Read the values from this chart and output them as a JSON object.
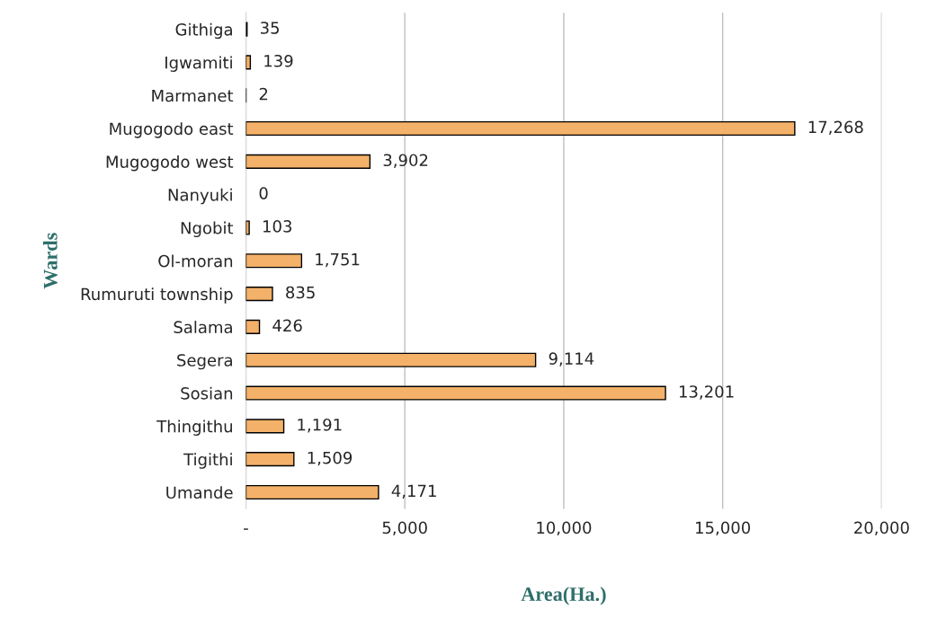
{
  "chart_data": {
    "type": "bar",
    "orientation": "horizontal",
    "xlabel": "Area(Ha.)",
    "ylabel": "Wards",
    "categories": [
      "Githiga",
      "Igwamiti",
      "Marmanet",
      "Mugogodo east",
      "Mugogodo west",
      "Nanyuki",
      "Ngobit",
      "Ol-moran",
      "Rumuruti township",
      "Salama",
      "Segera",
      "Sosian",
      "Thingithu",
      "Tigithi",
      "Umande"
    ],
    "values": [
      35,
      139,
      2,
      17268,
      3902,
      0,
      103,
      1751,
      835,
      426,
      9114,
      13201,
      1191,
      1509,
      4171
    ],
    "value_labels": [
      "35",
      "139",
      "2",
      "17,268",
      "3,902",
      "0",
      "103",
      "1,751",
      "835",
      "426",
      "9,114",
      "13,201",
      "1,191",
      "1,509",
      "4,171"
    ],
    "color": "#f4b169",
    "xlim": [
      0,
      20000
    ],
    "xticks": [
      {
        "value": 0,
        "label": "-"
      },
      {
        "value": 5000,
        "label": "5,000"
      },
      {
        "value": 10000,
        "label": "10,000"
      },
      {
        "value": 15000,
        "label": "15,000"
      },
      {
        "value": 20000,
        "label": "20,000"
      }
    ],
    "grid": "x"
  }
}
